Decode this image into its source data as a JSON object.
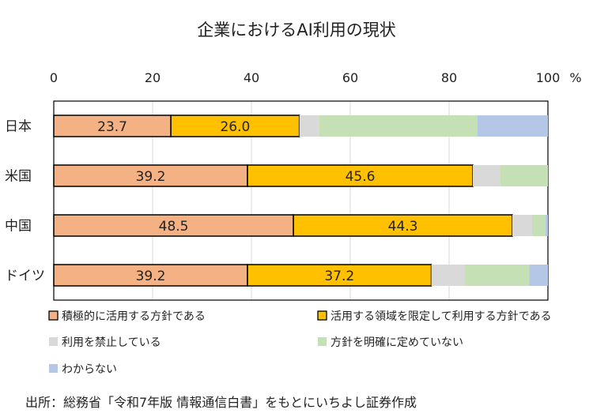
{
  "chart_data": {
    "type": "bar",
    "orientation": "horizontal",
    "stacked": true,
    "title": "企業におけるAI利用の現状",
    "xlim": [
      0,
      100
    ],
    "x_ticks": [
      "0",
      "20",
      "40",
      "60",
      "80",
      "100"
    ],
    "x_unit": "%",
    "categories": [
      "日本",
      "米国",
      "中国",
      "ドイツ"
    ],
    "series": [
      {
        "name": "積極的に活用する方針である",
        "color": "#f4b183",
        "values": [
          23.7,
          39.2,
          48.5,
          39.2
        ],
        "labels": [
          "23.7",
          "39.2",
          "48.5",
          "39.2"
        ]
      },
      {
        "name": "活用する領域を限定して利用する方針である",
        "color": "#ffc000",
        "values": [
          26.0,
          45.6,
          44.3,
          37.2
        ],
        "labels": [
          "26.0",
          "45.6",
          "44.3",
          "37.2"
        ]
      },
      {
        "name": "利用を禁止している",
        "color": "#d9d9d9",
        "values": [
          4.0,
          5.5,
          4.0,
          6.8
        ]
      },
      {
        "name": "方針を明確に定めていない",
        "color": "#c5e0b4",
        "values": [
          32.0,
          9.7,
          2.7,
          13.0
        ]
      },
      {
        "name": "わからない",
        "color": "#b4c7e7",
        "values": [
          14.3,
          0.0,
          0.5,
          3.8
        ]
      }
    ],
    "grid": true,
    "legend_position": "bottom"
  },
  "source": "出所：総務省「令和7年版 情報通信白書」をもとにいちよし証券作成"
}
